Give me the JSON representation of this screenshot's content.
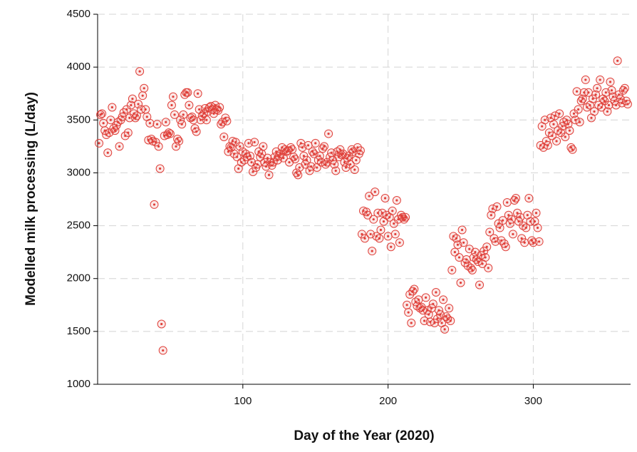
{
  "chart_data": {
    "type": "scatter",
    "xlabel": "Day of the Year (2020)",
    "ylabel": "Modelled milk processing (L/day)",
    "xlim": [
      0,
      367
    ],
    "xticks": [
      100,
      200,
      300
    ],
    "ylim": [
      1000,
      4500
    ],
    "yticks": [
      1000,
      1500,
      2000,
      2500,
      3000,
      3500,
      4000,
      4500
    ],
    "grid": true,
    "color": "#e0403a",
    "x": [
      1,
      2,
      3,
      4,
      5,
      6,
      7,
      8,
      9,
      10,
      11,
      12,
      13,
      14,
      15,
      16,
      17,
      18,
      19,
      20,
      21,
      22,
      23,
      24,
      25,
      26,
      27,
      28,
      29,
      30,
      31,
      32,
      33,
      34,
      35,
      36,
      37,
      38,
      39,
      40,
      41,
      42,
      43,
      44,
      45,
      46,
      47,
      48,
      49,
      50,
      51,
      52,
      53,
      54,
      55,
      56,
      57,
      58,
      59,
      60,
      61,
      62,
      63,
      64,
      65,
      66,
      67,
      68,
      69,
      70,
      71,
      72,
      73,
      74,
      75,
      76,
      77,
      78,
      79,
      80,
      81,
      82,
      83,
      84,
      85,
      86,
      87,
      88,
      89,
      90,
      91,
      92,
      93,
      94,
      95,
      96,
      97,
      98,
      99,
      100,
      101,
      102,
      103,
      104,
      105,
      106,
      107,
      108,
      109,
      110,
      111,
      112,
      113,
      114,
      115,
      116,
      117,
      118,
      119,
      120,
      121,
      122,
      123,
      124,
      125,
      126,
      127,
      128,
      129,
      130,
      131,
      132,
      133,
      134,
      135,
      136,
      137,
      138,
      139,
      140,
      141,
      142,
      143,
      144,
      145,
      146,
      147,
      148,
      149,
      150,
      151,
      152,
      153,
      154,
      155,
      156,
      157,
      158,
      159,
      160,
      161,
      162,
      163,
      164,
      165,
      166,
      167,
      168,
      169,
      170,
      171,
      172,
      173,
      174,
      175,
      176,
      177,
      178,
      179,
      180,
      181,
      182,
      183,
      184,
      185,
      186,
      187,
      188,
      189,
      190,
      191,
      192,
      193,
      194,
      195,
      196,
      197,
      198,
      199,
      200,
      201,
      202,
      203,
      204,
      205,
      206,
      207,
      208,
      209,
      210,
      211,
      212,
      213,
      214,
      215,
      216,
      217,
      218,
      219,
      220,
      221,
      222,
      223,
      224,
      225,
      226,
      227,
      228,
      229,
      230,
      231,
      232,
      233,
      234,
      235,
      236,
      237,
      238,
      239,
      240,
      241,
      242,
      243,
      244,
      245,
      246,
      247,
      248,
      249,
      250,
      251,
      252,
      253,
      254,
      255,
      256,
      257,
      258,
      259,
      260,
      261,
      262,
      263,
      264,
      265,
      266,
      267,
      268,
      269,
      270,
      271,
      272,
      273,
      274,
      275,
      276,
      277,
      278,
      279,
      280,
      281,
      282,
      283,
      284,
      285,
      286,
      287,
      288,
      289,
      290,
      291,
      292,
      293,
      294,
      295,
      296,
      297,
      298,
      299,
      300,
      301,
      302,
      303,
      304,
      305,
      306,
      307,
      308,
      309,
      310,
      311,
      312,
      313,
      314,
      315,
      316,
      317,
      318,
      319,
      320,
      321,
      322,
      323,
      324,
      325,
      326,
      327,
      328,
      329,
      330,
      331,
      332,
      333,
      334,
      335,
      336,
      337,
      338,
      339,
      340,
      341,
      342,
      343,
      344,
      345,
      346,
      347,
      348,
      349,
      350,
      351,
      352,
      353,
      354,
      355,
      356,
      357,
      358,
      359,
      360,
      361,
      362,
      363,
      364,
      365
    ],
    "values": [
      3280,
      3550,
      3560,
      3470,
      3400,
      3360,
      3190,
      3380,
      3500,
      3620,
      3420,
      3400,
      3450,
      3480,
      3250,
      3500,
      3530,
      3570,
      3350,
      3600,
      3380,
      3520,
      3640,
      3700,
      3560,
      3520,
      3540,
      3650,
      3960,
      3600,
      3730,
      3800,
      3600,
      3530,
      3310,
      3470,
      3320,
      3300,
      2700,
      3290,
      3460,
      3250,
      3040,
      1570,
      1320,
      3350,
      3480,
      3360,
      3380,
      3370,
      3640,
      3720,
      3550,
      3250,
      3320,
      3300,
      3500,
      3460,
      3550,
      3740,
      3760,
      3760,
      3640,
      3520,
      3530,
      3500,
      3420,
      3390,
      3750,
      3600,
      3500,
      3540,
      3560,
      3610,
      3500,
      3580,
      3620,
      3630,
      3600,
      3560,
      3640,
      3600,
      3590,
      3620,
      3460,
      3480,
      3340,
      3520,
      3490,
      3200,
      3250,
      3240,
      3300,
      3180,
      3290,
      3150,
      3040,
      3250,
      3100,
      3200,
      3120,
      3180,
      3150,
      3280,
      3160,
      3100,
      3010,
      3290,
      3050,
      3080,
      3200,
      3150,
      3180,
      3250,
      3100,
      3060,
      3140,
      2980,
      3100,
      3070,
      3100,
      3150,
      3200,
      3120,
      3160,
      3180,
      3240,
      3140,
      3220,
      3200,
      3210,
      3100,
      3240,
      3220,
      3150,
      3130,
      3000,
      2980,
      3050,
      3280,
      3240,
      3160,
      3080,
      3120,
      3260,
      3020,
      3060,
      3200,
      3180,
      3280,
      3050,
      3120,
      3160,
      3100,
      3230,
      3250,
      3080,
      3100,
      3370,
      3150,
      3190,
      3120,
      3080,
      3020,
      3200,
      3150,
      3220,
      3170,
      3180,
      3100,
      3050,
      3140,
      3160,
      3080,
      3220,
      3200,
      3030,
      3120,
      3240,
      3180,
      3210,
      2420,
      2640,
      2380,
      2630,
      2600,
      2780,
      2420,
      2260,
      2560,
      2820,
      2400,
      2620,
      2380,
      2460,
      2620,
      2540,
      2760,
      2600,
      2400,
      2580,
      2300,
      2640,
      2520,
      2420,
      2740,
      2560,
      2340,
      2600,
      2580,
      2560,
      2580,
      1750,
      1680,
      1850,
      1580,
      1880,
      1900,
      1780,
      1740,
      1800,
      1720,
      1730,
      1700,
      1600,
      1820,
      1700,
      1660,
      1590,
      1720,
      1760,
      1580,
      1870,
      1620,
      1700,
      1660,
      1580,
      1800,
      1520,
      1640,
      1620,
      1720,
      1600,
      2080,
      2400,
      2250,
      2380,
      2320,
      2200,
      1960,
      2460,
      2340,
      2150,
      2180,
      2120,
      2280,
      2100,
      2080,
      2200,
      2250,
      2180,
      2160,
      1940,
      2220,
      2140,
      2260,
      2200,
      2300,
      2100,
      2440,
      2600,
      2660,
      2380,
      2350,
      2680,
      2520,
      2480,
      2360,
      2550,
      2330,
      2300,
      2720,
      2600,
      2520,
      2560,
      2420,
      2740,
      2760,
      2620,
      2540,
      2580,
      2380,
      2500,
      2340,
      2480,
      2600,
      2760,
      2540,
      2360,
      2340,
      2540,
      2620,
      2480,
      2350,
      3260,
      3440,
      3240,
      3500,
      3300,
      3260,
      3380,
      3520,
      3350,
      3460,
      3540,
      3300,
      3400,
      3560,
      3380,
      3440,
      3480,
      3340,
      3500,
      3460,
      3400,
      3240,
      3220,
      3560,
      3500,
      3770,
      3600,
      3480,
      3680,
      3700,
      3760,
      3880,
      3620,
      3760,
      3640,
      3520,
      3700,
      3580,
      3740,
      3800,
      3640,
      3880,
      3620,
      3700,
      3680,
      3760,
      3580,
      3640,
      3860,
      3780,
      3720,
      3680,
      3640,
      4060,
      3740,
      3700,
      3660,
      3780,
      3800,
      3680,
      3650
    ]
  }
}
